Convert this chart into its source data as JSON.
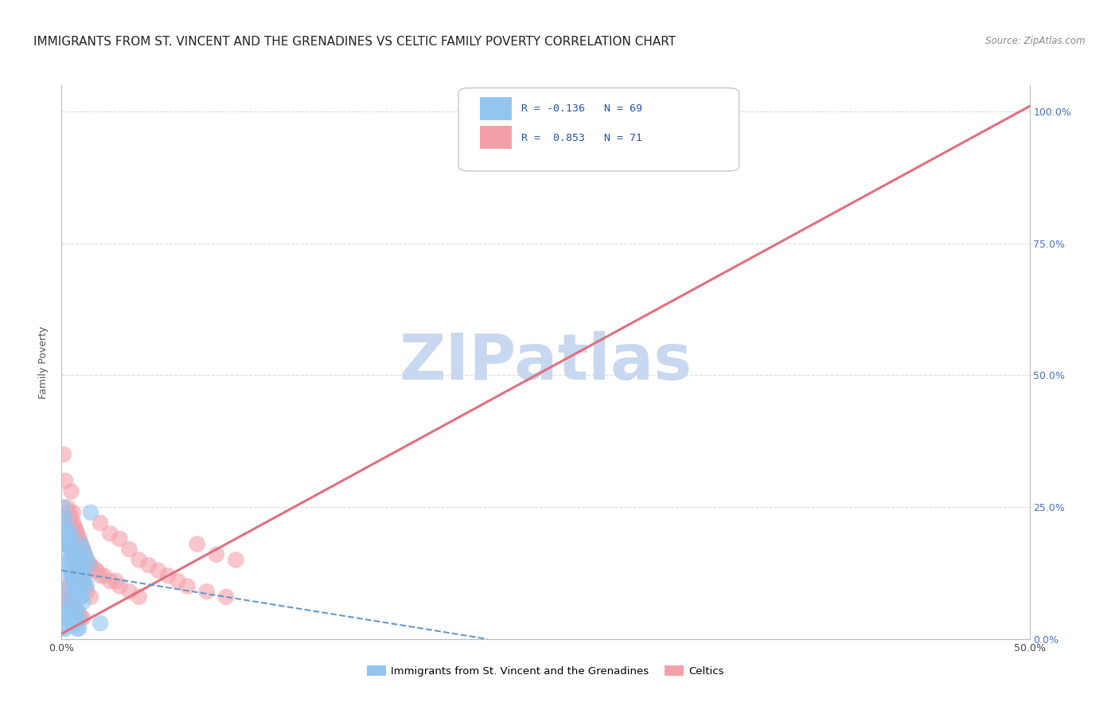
{
  "title": "IMMIGRANTS FROM ST. VINCENT AND THE GRENADINES VS CELTIC FAMILY POVERTY CORRELATION CHART",
  "source": "Source: ZipAtlas.com",
  "ylabel_label": "Family Poverty",
  "xlim": [
    0.0,
    0.5
  ],
  "ylim": [
    0.0,
    1.05
  ],
  "legend_line1": "R = -0.136   N = 69",
  "legend_line2": "R =  0.853   N = 71",
  "legend_label1": "Immigrants from St. Vincent and the Grenadines",
  "legend_label2": "Celtics",
  "color_blue": "#92C5F0",
  "color_pink": "#F4A0AA",
  "color_line_pink": "#E07080",
  "color_line_blue_dashed": "#6699CC",
  "watermark": "ZIPatlas",
  "watermark_color": "#C8D8F0",
  "grid_color": "#DDDDDD",
  "title_fontsize": 11,
  "axis_label_fontsize": 9,
  "tick_label_fontsize": 9,
  "blue_scatter_x": [
    0.002,
    0.003,
    0.003,
    0.004,
    0.004,
    0.005,
    0.005,
    0.005,
    0.006,
    0.006,
    0.006,
    0.007,
    0.007,
    0.007,
    0.008,
    0.008,
    0.008,
    0.009,
    0.009,
    0.009,
    0.01,
    0.01,
    0.01,
    0.011,
    0.011,
    0.012,
    0.012,
    0.013,
    0.013,
    0.014,
    0.001,
    0.002,
    0.002,
    0.003,
    0.004,
    0.004,
    0.005,
    0.005,
    0.006,
    0.006,
    0.007,
    0.007,
    0.008,
    0.008,
    0.009,
    0.009,
    0.01,
    0.01,
    0.011,
    0.011,
    0.001,
    0.002,
    0.003,
    0.004,
    0.005,
    0.006,
    0.007,
    0.008,
    0.009,
    0.015,
    0.001,
    0.002,
    0.003,
    0.004,
    0.005,
    0.006,
    0.02,
    0.001,
    0.002
  ],
  "blue_scatter_y": [
    0.18,
    0.13,
    0.08,
    0.15,
    0.1,
    0.2,
    0.12,
    0.07,
    0.17,
    0.11,
    0.06,
    0.16,
    0.09,
    0.04,
    0.15,
    0.1,
    0.05,
    0.14,
    0.09,
    0.04,
    0.18,
    0.13,
    0.08,
    0.17,
    0.12,
    0.16,
    0.11,
    0.15,
    0.1,
    0.14,
    0.22,
    0.2,
    0.16,
    0.19,
    0.18,
    0.14,
    0.17,
    0.13,
    0.16,
    0.12,
    0.15,
    0.11,
    0.14,
    0.1,
    0.13,
    0.09,
    0.12,
    0.08,
    0.11,
    0.07,
    0.25,
    0.23,
    0.21,
    0.19,
    0.03,
    0.03,
    0.03,
    0.02,
    0.02,
    0.24,
    0.05,
    0.05,
    0.05,
    0.04,
    0.04,
    0.04,
    0.03,
    0.02,
    0.02
  ],
  "pink_scatter_x": [
    0.003,
    0.004,
    0.005,
    0.005,
    0.006,
    0.006,
    0.007,
    0.007,
    0.008,
    0.008,
    0.009,
    0.009,
    0.01,
    0.01,
    0.011,
    0.011,
    0.012,
    0.012,
    0.013,
    0.013,
    0.015,
    0.015,
    0.018,
    0.02,
    0.022,
    0.025,
    0.028,
    0.03,
    0.035,
    0.04,
    0.045,
    0.05,
    0.055,
    0.06,
    0.065,
    0.07,
    0.075,
    0.08,
    0.085,
    0.09,
    0.001,
    0.002,
    0.003,
    0.004,
    0.005,
    0.006,
    0.007,
    0.008,
    0.009,
    0.01,
    0.011,
    0.012,
    0.013,
    0.015,
    0.018,
    0.02,
    0.025,
    0.03,
    0.035,
    0.04,
    0.001,
    0.002,
    0.003,
    0.004,
    0.005,
    0.006,
    0.007,
    0.008,
    0.009,
    0.01,
    0.011
  ],
  "pink_scatter_y": [
    0.18,
    0.22,
    0.17,
    0.28,
    0.16,
    0.24,
    0.15,
    0.21,
    0.14,
    0.2,
    0.13,
    0.19,
    0.12,
    0.18,
    0.11,
    0.17,
    0.1,
    0.16,
    0.09,
    0.15,
    0.14,
    0.08,
    0.13,
    0.22,
    0.12,
    0.2,
    0.11,
    0.19,
    0.17,
    0.15,
    0.14,
    0.13,
    0.12,
    0.11,
    0.1,
    0.18,
    0.09,
    0.16,
    0.08,
    0.15,
    0.35,
    0.3,
    0.25,
    0.24,
    0.23,
    0.22,
    0.21,
    0.2,
    0.19,
    0.18,
    0.17,
    0.16,
    0.15,
    0.14,
    0.13,
    0.12,
    0.11,
    0.1,
    0.09,
    0.08,
    0.1,
    0.09,
    0.08,
    0.07,
    0.07,
    0.06,
    0.06,
    0.05,
    0.05,
    0.04,
    0.04
  ],
  "pink_line_x": [
    0.0,
    0.5
  ],
  "pink_line_y": [
    0.01,
    1.01
  ],
  "blue_line_x": [
    0.0,
    0.22
  ],
  "blue_line_y": [
    0.13,
    0.0
  ]
}
